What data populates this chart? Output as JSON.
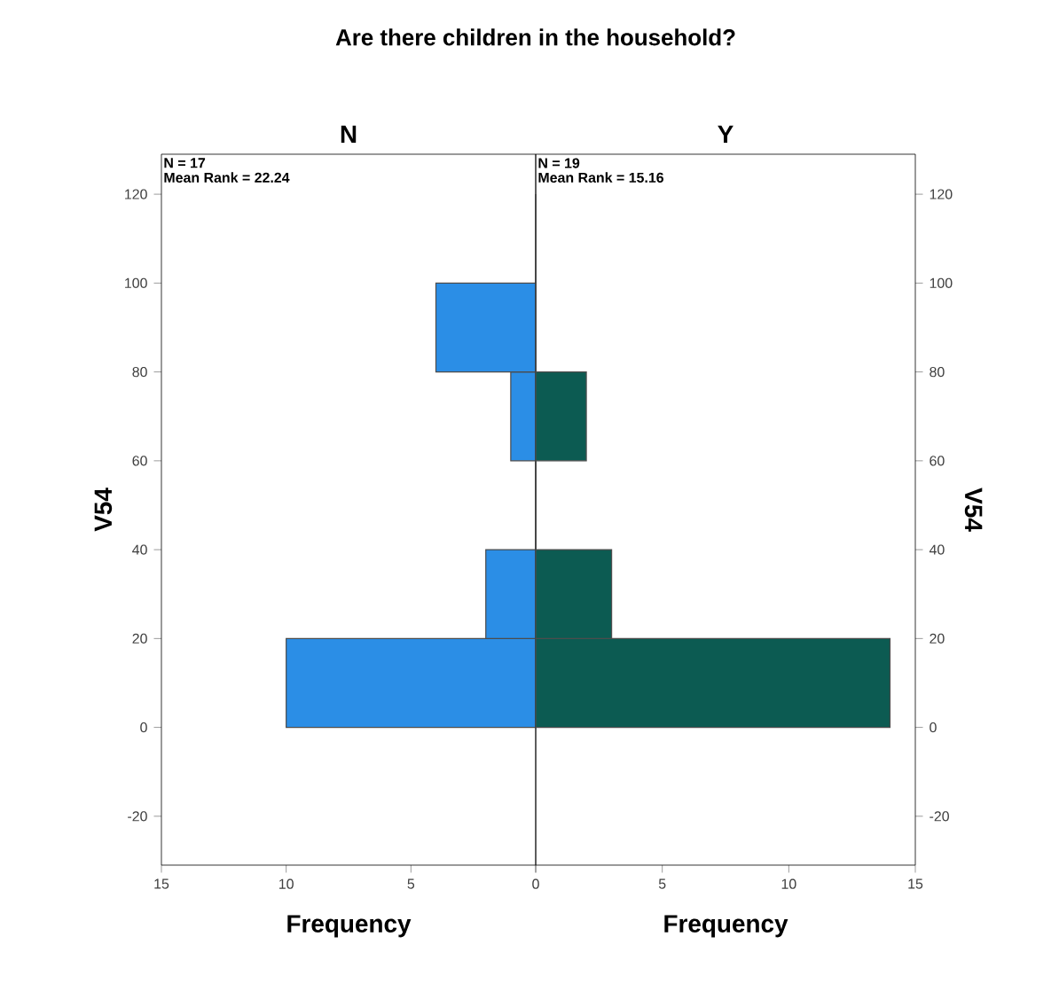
{
  "chart_data": [
    {
      "type": "histogram",
      "title": "Are there children in the household?",
      "subtitle": "N",
      "orientation": "horizontal",
      "bins": [
        0,
        20,
        40,
        60,
        80,
        100,
        120
      ],
      "values": [
        10,
        2,
        0,
        1,
        4,
        0
      ],
      "color": "#2b8ee6",
      "xlim": [
        15,
        0
      ],
      "xticks": [
        15,
        10,
        5,
        {
          "value": 0,
          "label": null
        }
      ],
      "ylim": [
        -31,
        129
      ],
      "yticks": [
        -20,
        0,
        20,
        40,
        60,
        80,
        100,
        120
      ],
      "xlabel": "Frequency",
      "ylabel": "V54",
      "annotations": [
        "N = 17",
        "Mean Rank = 22.24"
      ],
      "grid": false
    },
    {
      "type": "histogram",
      "subtitle": "Y",
      "orientation": "horizontal",
      "bins": [
        0,
        20,
        40,
        60,
        80,
        100,
        120
      ],
      "values": [
        14,
        3,
        0,
        2,
        0,
        0
      ],
      "color": "#0c5b52",
      "xlim": [
        0,
        15
      ],
      "xticks": [
        0,
        5,
        10,
        15
      ],
      "ylim": [
        -31,
        129
      ],
      "yticks": [
        -20,
        0,
        20,
        40,
        60,
        80,
        100,
        120
      ],
      "xlabel": "Frequency",
      "ylabel": "V54",
      "annotations": [
        "N = 19",
        "Mean Rank = 15.16"
      ],
      "grid": false
    }
  ]
}
